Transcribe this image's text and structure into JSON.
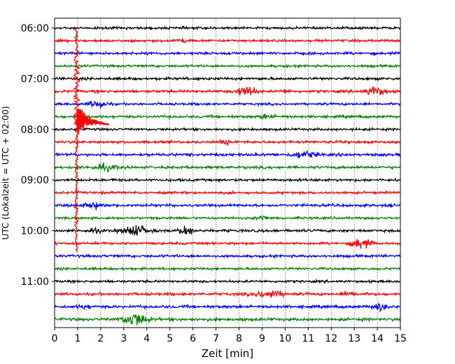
{
  "chart_data": {
    "type": "line",
    "chart_kind": "seismic helicorder (drum plot)",
    "xlabel": "Zeit  [min]",
    "ylabel": "UTC (Lokalzeit = UTC + 02:00)",
    "xlim": [
      0,
      15
    ],
    "x_ticks": [
      "0",
      "1",
      "2",
      "3",
      "4",
      "5",
      "6",
      "7",
      "8",
      "9",
      "10",
      "11",
      "12",
      "13",
      "14",
      "15"
    ],
    "y_tick_labels": [
      "06:00",
      "07:00",
      "08:00",
      "09:00",
      "10:00",
      "11:00"
    ],
    "y_tick_rows": [
      0,
      4,
      8,
      12,
      16,
      20
    ],
    "grid": "vertical dotted lines at every minute",
    "trace_interval_minutes": 15,
    "trace_colors": [
      "#000000",
      "#ff0000",
      "#0000ff",
      "#008000"
    ],
    "traces": [
      {
        "start": "06:00",
        "color": "#000000",
        "amplitude": 1.0,
        "events": []
      },
      {
        "start": "06:15",
        "color": "#ff0000",
        "amplitude": 1.0,
        "events": [
          {
            "t": 5.6,
            "amp": 2.5,
            "dur": 0.5
          }
        ]
      },
      {
        "start": "06:30",
        "color": "#0000ff",
        "amplitude": 1.1,
        "events": []
      },
      {
        "start": "06:45",
        "color": "#008000",
        "amplitude": 1.0,
        "events": []
      },
      {
        "start": "07:00",
        "color": "#000000",
        "amplitude": 1.1,
        "events": []
      },
      {
        "start": "07:15",
        "color": "#ff0000",
        "amplitude": 1.1,
        "events": [
          {
            "t": 8.3,
            "amp": 6,
            "dur": 0.8
          },
          {
            "t": 10.0,
            "amp": 2,
            "dur": 0.3
          },
          {
            "t": 13.9,
            "amp": 5,
            "dur": 0.8
          }
        ]
      },
      {
        "start": "07:30",
        "color": "#0000ff",
        "amplitude": 1.0,
        "events": [
          {
            "t": 1.9,
            "amp": 4,
            "dur": 0.8
          }
        ]
      },
      {
        "start": "07:45",
        "color": "#008000",
        "amplitude": 1.1,
        "events": [
          {
            "t": 9.2,
            "amp": 2,
            "dur": 0.6
          }
        ]
      },
      {
        "start": "08:00",
        "color": "#000000",
        "amplitude": 1.0,
        "events": []
      },
      {
        "start": "08:15",
        "color": "#ff0000",
        "amplitude": 1.1,
        "events": [
          {
            "t": 7.4,
            "amp": 2,
            "dur": 0.5
          }
        ]
      },
      {
        "start": "08:30",
        "color": "#0000ff",
        "amplitude": 1.2,
        "events": [
          {
            "t": 10.8,
            "amp": 3.5,
            "dur": 1.0
          }
        ]
      },
      {
        "start": "08:45",
        "color": "#008000",
        "amplitude": 1.1,
        "events": [
          {
            "t": 2.2,
            "amp": 3,
            "dur": 1.0
          }
        ]
      },
      {
        "start": "09:00",
        "color": "#000000",
        "amplitude": 1.1,
        "events": []
      },
      {
        "start": "09:15",
        "color": "#ff0000",
        "amplitude": 1.0,
        "events": []
      },
      {
        "start": "09:30",
        "color": "#0000ff",
        "amplitude": 1.1,
        "events": [
          {
            "t": 1.7,
            "amp": 3,
            "dur": 1.0
          }
        ]
      },
      {
        "start": "09:45",
        "color": "#008000",
        "amplitude": 1.0,
        "events": [
          {
            "t": 9.0,
            "amp": 3,
            "dur": 0.4
          }
        ]
      },
      {
        "start": "10:00",
        "color": "#000000",
        "amplitude": 1.1,
        "events": [
          {
            "t": 1.7,
            "amp": 3,
            "dur": 0.5
          },
          {
            "t": 3.5,
            "amp": 6,
            "dur": 1.0
          },
          {
            "t": 5.7,
            "amp": 5,
            "dur": 0.6
          }
        ]
      },
      {
        "start": "10:15",
        "color": "#ff0000",
        "amplitude": 1.0,
        "events": [
          {
            "t": 13.3,
            "amp": 6,
            "dur": 0.8
          }
        ]
      },
      {
        "start": "10:30",
        "color": "#0000ff",
        "amplitude": 1.1,
        "events": []
      },
      {
        "start": "10:45",
        "color": "#008000",
        "amplitude": 1.0,
        "events": []
      },
      {
        "start": "11:00",
        "color": "#000000",
        "amplitude": 1.0,
        "events": []
      },
      {
        "start": "11:15",
        "color": "#ff0000",
        "amplitude": 1.1,
        "events": [
          {
            "t": 9.3,
            "amp": 4,
            "dur": 1.2
          },
          {
            "t": 12.8,
            "amp": 2.5,
            "dur": 0.6
          }
        ]
      },
      {
        "start": "11:30",
        "color": "#0000ff",
        "amplitude": 1.2,
        "events": [
          {
            "t": 1.3,
            "amp": 2,
            "dur": 0.5
          },
          {
            "t": 14.1,
            "amp": 4,
            "dur": 0.6
          }
        ]
      },
      {
        "start": "11:45",
        "color": "#008000",
        "amplitude": 1.2,
        "events": [
          {
            "t": 3.5,
            "amp": 8,
            "dur": 1.0
          }
        ]
      }
    ],
    "major_event": {
      "time_minute": 0.95,
      "color": "#ff0000",
      "description": "large earthquake arrival spanning traces 06:00 to about 10:30 near minute 1"
    }
  }
}
